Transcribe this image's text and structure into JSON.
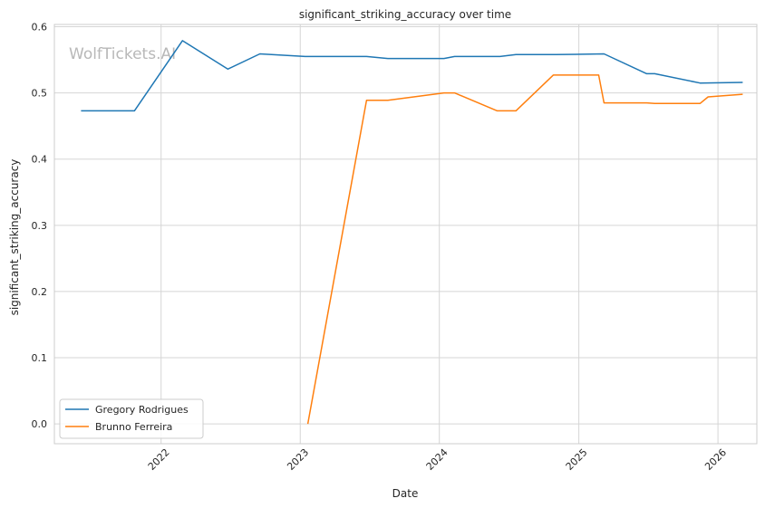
{
  "chart_data": {
    "type": "line",
    "title": "significant_striking_accuracy over time",
    "xlabel": "Date",
    "ylabel": "significant_striking_accuracy",
    "watermark": "WolfTickets.AI",
    "xlim": [
      "2021-03-27",
      "2026-04-13"
    ],
    "ylim": [
      -0.03,
      0.6035
    ],
    "x_ticks": [
      "2022",
      "2023",
      "2024",
      "2025",
      "2026"
    ],
    "y_ticks": [
      "0.0",
      "0.1",
      "0.2",
      "0.3",
      "0.4",
      "0.5",
      "0.6"
    ],
    "grid": true,
    "legend_position": "lower-left",
    "series": [
      {
        "name": "Gregory Rodrigues",
        "color": "#1f77b4",
        "points": [
          [
            "2021-06-05",
            0.473
          ],
          [
            "2021-10-23",
            0.473
          ],
          [
            "2022-02-26",
            0.579
          ],
          [
            "2022-06-25",
            0.536
          ],
          [
            "2022-09-17",
            0.559
          ],
          [
            "2023-01-14",
            0.555
          ],
          [
            "2023-06-24",
            0.555
          ],
          [
            "2023-08-19",
            0.552
          ],
          [
            "2024-01-13",
            0.552
          ],
          [
            "2024-02-10",
            0.555
          ],
          [
            "2024-06-08",
            0.555
          ],
          [
            "2024-07-20",
            0.558
          ],
          [
            "2024-11-02",
            0.558
          ],
          [
            "2025-03-08",
            0.559
          ],
          [
            "2025-06-28",
            0.529
          ],
          [
            "2025-07-19",
            0.529
          ],
          [
            "2025-11-15",
            0.515
          ],
          [
            "2026-03-07",
            0.516
          ]
        ]
      },
      {
        "name": "Brunno Ferreira",
        "color": "#ff7f0e",
        "points": [
          [
            "2023-01-21",
            0.0
          ],
          [
            "2023-06-24",
            0.489
          ],
          [
            "2023-08-19",
            0.489
          ],
          [
            "2024-01-13",
            0.5
          ],
          [
            "2024-02-10",
            0.5
          ],
          [
            "2024-06-01",
            0.473
          ],
          [
            "2024-07-20",
            0.473
          ],
          [
            "2024-10-26",
            0.527
          ],
          [
            "2025-02-22",
            0.527
          ],
          [
            "2025-03-08",
            0.485
          ],
          [
            "2025-06-28",
            0.485
          ],
          [
            "2025-07-19",
            0.484
          ],
          [
            "2025-11-15",
            0.484
          ],
          [
            "2025-12-06",
            0.494
          ],
          [
            "2026-03-07",
            0.498
          ]
        ]
      }
    ]
  }
}
